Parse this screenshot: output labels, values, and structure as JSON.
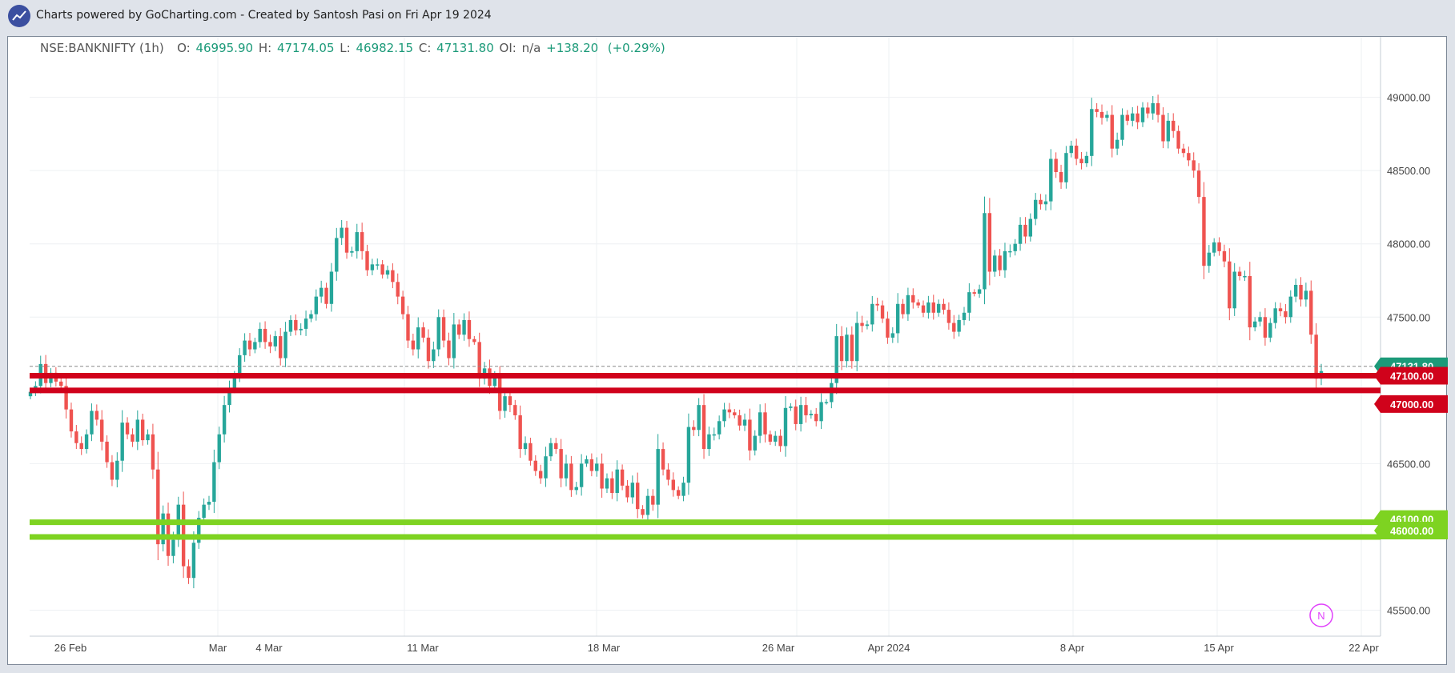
{
  "header": {
    "credit": "Charts powered by GoCharting.com - Created by Santosh Pasi on Fri Apr 19 2024"
  },
  "ohlc": {
    "symbol": "NSE:BANKNIFTY (1h)",
    "o_label": "O:",
    "o": "46995.90",
    "h_label": "H:",
    "h": "47174.05",
    "l_label": "L:",
    "l": "46982.15",
    "c_label": "C:",
    "c": "47131.80",
    "oi_label": "OI:",
    "oi": "n/a",
    "change": "+138.20",
    "change_pct": "(+0.29%)"
  },
  "colors": {
    "up": "#26a69a",
    "down": "#ef5350",
    "resistance": "#d0021b",
    "support": "#7ed321",
    "last_price": "#1c9a79",
    "badge_text": "#ffffff"
  },
  "chart_data": {
    "type": "candlestick",
    "symbol": "NSE:BANKNIFTY",
    "interval": "1h",
    "x_tick_labels": [
      "26 Feb",
      "Mar",
      "4 Mar",
      "11 Mar",
      "18 Mar",
      "26 Mar",
      "Apr 2024",
      "8 Apr",
      "15 Apr",
      "22 Apr"
    ],
    "y_tick_labels": [
      "49000.00",
      "48500.00",
      "48000.00",
      "47500.00",
      "46500.00",
      "45500.00"
    ],
    "y_ticks": [
      49000,
      48500,
      48000,
      47500,
      46500,
      45500
    ],
    "ylim": [
      45300,
      49400
    ],
    "grid": true,
    "last_price": {
      "value": 47131.8,
      "label": "47131.80"
    },
    "horizontal_lines": [
      {
        "value": 47100,
        "label": "47100.00",
        "kind": "resistance"
      },
      {
        "value": 47000,
        "label": "47000.00",
        "kind": "resistance"
      },
      {
        "value": 46100,
        "label": "46100.00",
        "kind": "support"
      },
      {
        "value": 46000,
        "label": "46000.00",
        "kind": "support"
      }
    ],
    "watermark": "N",
    "closes": [
      46990,
      47030,
      47180,
      47050,
      47120,
      47060,
      47030,
      46870,
      46720,
      46640,
      46600,
      46700,
      46860,
      46800,
      46650,
      46510,
      46390,
      46520,
      46780,
      46700,
      46650,
      46800,
      46660,
      46700,
      46460,
      45950,
      46160,
      45870,
      45980,
      46220,
      45800,
      45720,
      45960,
      46130,
      46220,
      46240,
      46510,
      46700,
      46900,
      47010,
      47100,
      47240,
      47340,
      47280,
      47330,
      47420,
      47330,
      47300,
      47370,
      47220,
      47400,
      47480,
      47410,
      47420,
      47490,
      47520,
      47640,
      47700,
      47590,
      47810,
      48040,
      48110,
      47940,
      47950,
      48080,
      47950,
      47820,
      47860,
      47860,
      47790,
      47820,
      47740,
      47640,
      47520,
      47340,
      47280,
      47430,
      47360,
      47200,
      47280,
      47500,
      47340,
      47220,
      47450,
      47380,
      47480,
      47350,
      47330,
      47080,
      47150,
      47030,
      47100,
      46860,
      46960,
      46900,
      46830,
      46600,
      46640,
      46520,
      46450,
      46400,
      46550,
      46640,
      46600,
      46400,
      46500,
      46320,
      46340,
      46500,
      46530,
      46450,
      46500,
      46330,
      46400,
      46300,
      46460,
      46350,
      46270,
      46370,
      46190,
      46150,
      46280,
      46220,
      46600,
      46460,
      46390,
      46320,
      46280,
      46370,
      46750,
      46730,
      46900,
      46600,
      46700,
      46700,
      46790,
      46870,
      46850,
      46830,
      46760,
      46800,
      46590,
      46690,
      46850,
      46700,
      46650,
      46690,
      46620,
      46880,
      46890,
      46770,
      46900,
      46830,
      46840,
      46790,
      46920,
      46920,
      47050,
      47370,
      47200,
      47380,
      47200,
      47460,
      47440,
      47450,
      47590,
      47580,
      47490,
      47360,
      47390,
      47590,
      47520,
      47650,
      47600,
      47580,
      47530,
      47600,
      47530,
      47590,
      47550,
      47460,
      47400,
      47480,
      47530,
      47670,
      47660,
      47690,
      48210,
      47810,
      47920,
      47820,
      47950,
      47950,
      48000,
      48130,
      48050,
      48170,
      48300,
      48270,
      48290,
      48580,
      48490,
      48420,
      48620,
      48670,
      48580,
      48550,
      48600,
      48920,
      48900,
      48860,
      48880,
      48650,
      48710,
      48880,
      48840,
      48890,
      48830,
      48930,
      48890,
      48960,
      48880,
      48700,
      48840,
      48770,
      48650,
      48620,
      48570,
      48500,
      48320,
      47850,
      47940,
      48010,
      47950,
      47880,
      47560,
      47810,
      47780,
      47780,
      47430,
      47470,
      47500,
      47360,
      47460,
      47560,
      47540,
      47500,
      47640,
      47720,
      47620,
      47680,
      47380,
      47080,
      47131.8
    ]
  }
}
